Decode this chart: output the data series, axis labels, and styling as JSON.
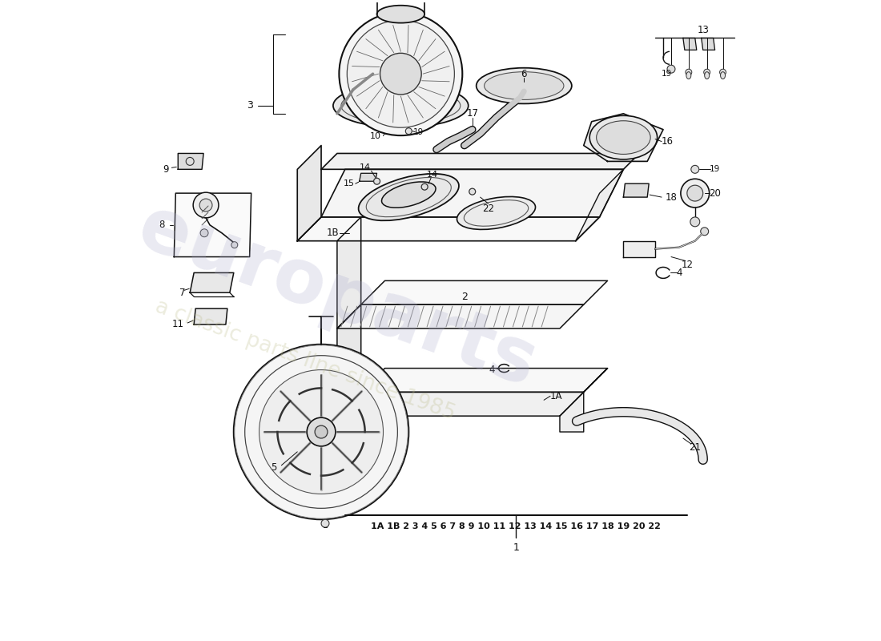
{
  "background_color": "#ffffff",
  "watermark1": "europarts",
  "watermark2": "a classic parts line since 1985",
  "parts_index": "1A 1B 2 3 4 5 6 7 8 9 10 11 12 13 14 15 16 17 18 19 20 22",
  "ref_number": "1",
  "wm1_color": "#aaaacc",
  "wm2_color": "#bbbb88",
  "wm1_alpha": 0.25,
  "wm2_alpha": 0.28
}
